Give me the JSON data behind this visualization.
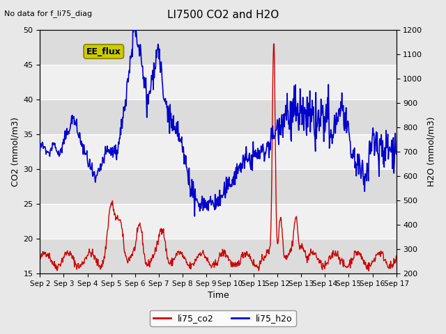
{
  "title": "LI7500 CO2 and H2O",
  "top_left_text": "No data for f_li75_diag",
  "xlabel": "Time",
  "ylabel_left": "CO2 (mmol/m3)",
  "ylabel_right": "H2O (mmol/m3)",
  "ylim_left": [
    15,
    50
  ],
  "ylim_right": [
    200,
    1200
  ],
  "x_tick_labels": [
    "Sep 2",
    "Sep 3",
    "Sep 4",
    "Sep 5",
    "Sep 6",
    "Sep 7",
    "Sep 8",
    "Sep 9",
    "Sep 10",
    "Sep 11",
    "Sep 12",
    "Sep 13",
    "Sep 14",
    "Sep 15",
    "Sep 16",
    "Sep 17"
  ],
  "legend_labels": [
    "li75_co2",
    "li75_h2o"
  ],
  "legend_colors": [
    "#cc0000",
    "#0000cc"
  ],
  "co2_color": "#cc0000",
  "h2o_color": "#0000cc",
  "bg_color": "#e8e8e8",
  "plot_bg_color": "#f0f0f0",
  "band_color": "#dcdcdc",
  "ee_flux_color": "#cccc00",
  "ee_flux_text": "EE_flux",
  "yticks_left": [
    15,
    20,
    25,
    30,
    35,
    40,
    45,
    50
  ],
  "yticks_right": [
    200,
    300,
    400,
    500,
    600,
    700,
    800,
    900,
    1000,
    1100,
    1200
  ],
  "grid_color": "#ffffff"
}
